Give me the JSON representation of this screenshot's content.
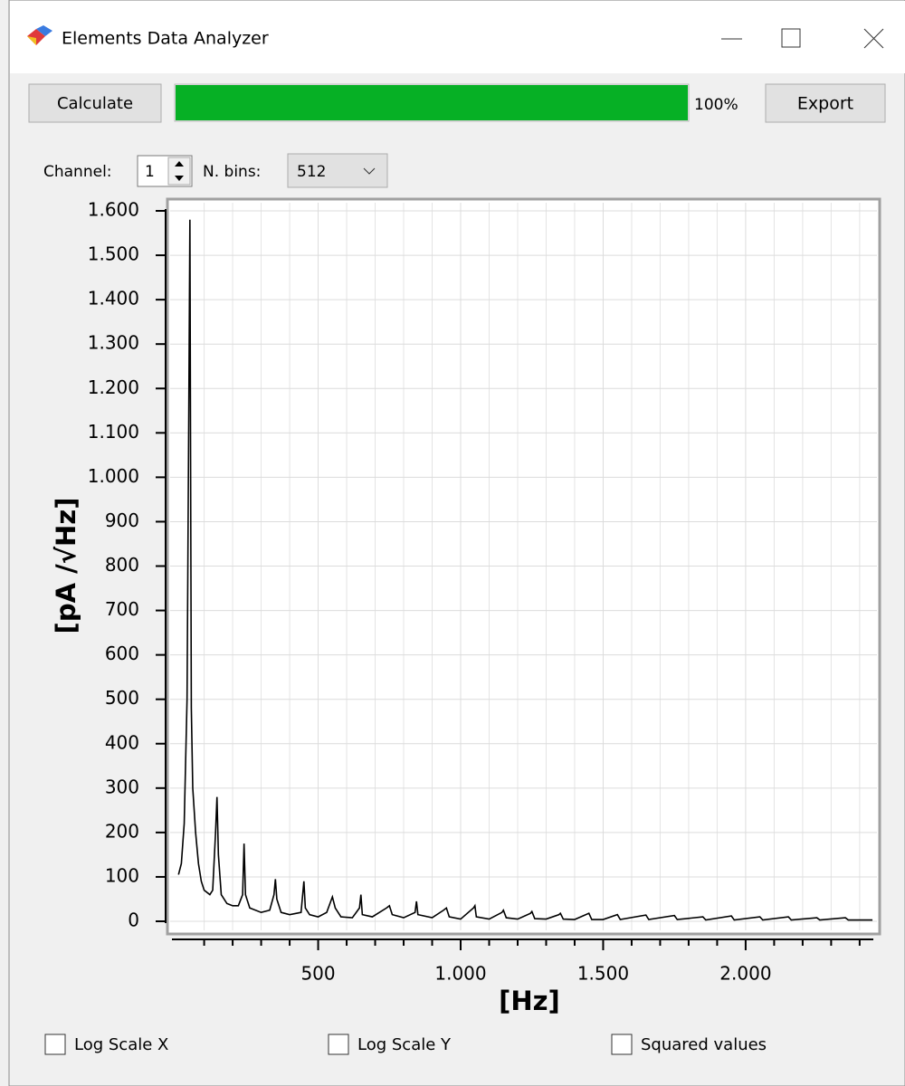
{
  "window": {
    "title": "Elements Data Analyzer"
  },
  "toolbar": {
    "calculate": "Calculate",
    "progress": {
      "value": 100,
      "label": "100%"
    },
    "export": "Export"
  },
  "controls": {
    "channel_label": "Channel:",
    "channel": "1",
    "bins_label": "N. bins:",
    "bins": "512"
  },
  "options": [
    "Log Scale X",
    "Log Scale Y",
    "Squared values"
  ],
  "chart_data": {
    "type": "line",
    "ylabel": "[pA /√Hz]",
    "xlabel": "[Hz]",
    "color": "#000000",
    "grid": true,
    "xlim": [
      -13,
      2448
    ],
    "ylim": [
      0,
      1600
    ],
    "xticks": [
      500,
      {
        "value": 1000,
        "label": "1.000"
      },
      {
        "value": 1500,
        "label": "1.500"
      },
      {
        "value": 2000,
        "label": "2.000"
      }
    ],
    "xminorticks": [
      100,
      200,
      300,
      400,
      600,
      700,
      800,
      900,
      1100,
      1200,
      1300,
      1400,
      1600,
      1700,
      1800,
      1900,
      2100,
      2200,
      2300,
      2400
    ],
    "yticks": [
      0,
      100,
      200,
      300,
      400,
      500,
      600,
      700,
      800,
      900,
      {
        "value": 1000,
        "label": "1.000"
      },
      {
        "value": 1100,
        "label": "1.100"
      },
      {
        "value": 1200,
        "label": "1.200"
      },
      {
        "value": 1300,
        "label": "1.300"
      },
      {
        "value": 1400,
        "label": "1.400"
      },
      {
        "value": 1500,
        "label": "1.500"
      },
      {
        "value": 1600,
        "label": "1.600"
      }
    ],
    "x": [
      10,
      20,
      30,
      40,
      45,
      50,
      55,
      60,
      70,
      80,
      90,
      100,
      120,
      130,
      140,
      145,
      150,
      160,
      180,
      200,
      220,
      235,
      240,
      245,
      260,
      300,
      330,
      345,
      350,
      355,
      370,
      400,
      440,
      450,
      455,
      470,
      500,
      530,
      550,
      560,
      580,
      620,
      645,
      650,
      655,
      690,
      740,
      750,
      760,
      800,
      840,
      845,
      850,
      900,
      940,
      950,
      960,
      1000,
      1045,
      1050,
      1055,
      1100,
      1145,
      1150,
      1160,
      1200,
      1245,
      1250,
      1260,
      1300,
      1345,
      1350,
      1360,
      1400,
      1450,
      1460,
      1500,
      1550,
      1560,
      1650,
      1660,
      1750,
      1760,
      1850,
      1860,
      1950,
      1960,
      2050,
      2060,
      2150,
      2160,
      2250,
      2260,
      2350,
      2360,
      2445
    ],
    "values": [
      105,
      130,
      220,
      500,
      1030,
      1580,
      480,
      300,
      200,
      130,
      90,
      70,
      60,
      70,
      200,
      280,
      150,
      60,
      40,
      35,
      35,
      60,
      175,
      60,
      30,
      20,
      25,
      60,
      95,
      50,
      20,
      15,
      20,
      90,
      30,
      15,
      10,
      20,
      55,
      30,
      10,
      8,
      30,
      60,
      15,
      10,
      30,
      35,
      15,
      8,
      20,
      45,
      15,
      8,
      25,
      30,
      10,
      5,
      30,
      35,
      10,
      5,
      20,
      25,
      8,
      5,
      18,
      22,
      6,
      5,
      15,
      18,
      5,
      4,
      18,
      4,
      4,
      15,
      4,
      14,
      4,
      13,
      4,
      10,
      3,
      12,
      3,
      10,
      3,
      10,
      3,
      8,
      3,
      8,
      3,
      3
    ]
  }
}
